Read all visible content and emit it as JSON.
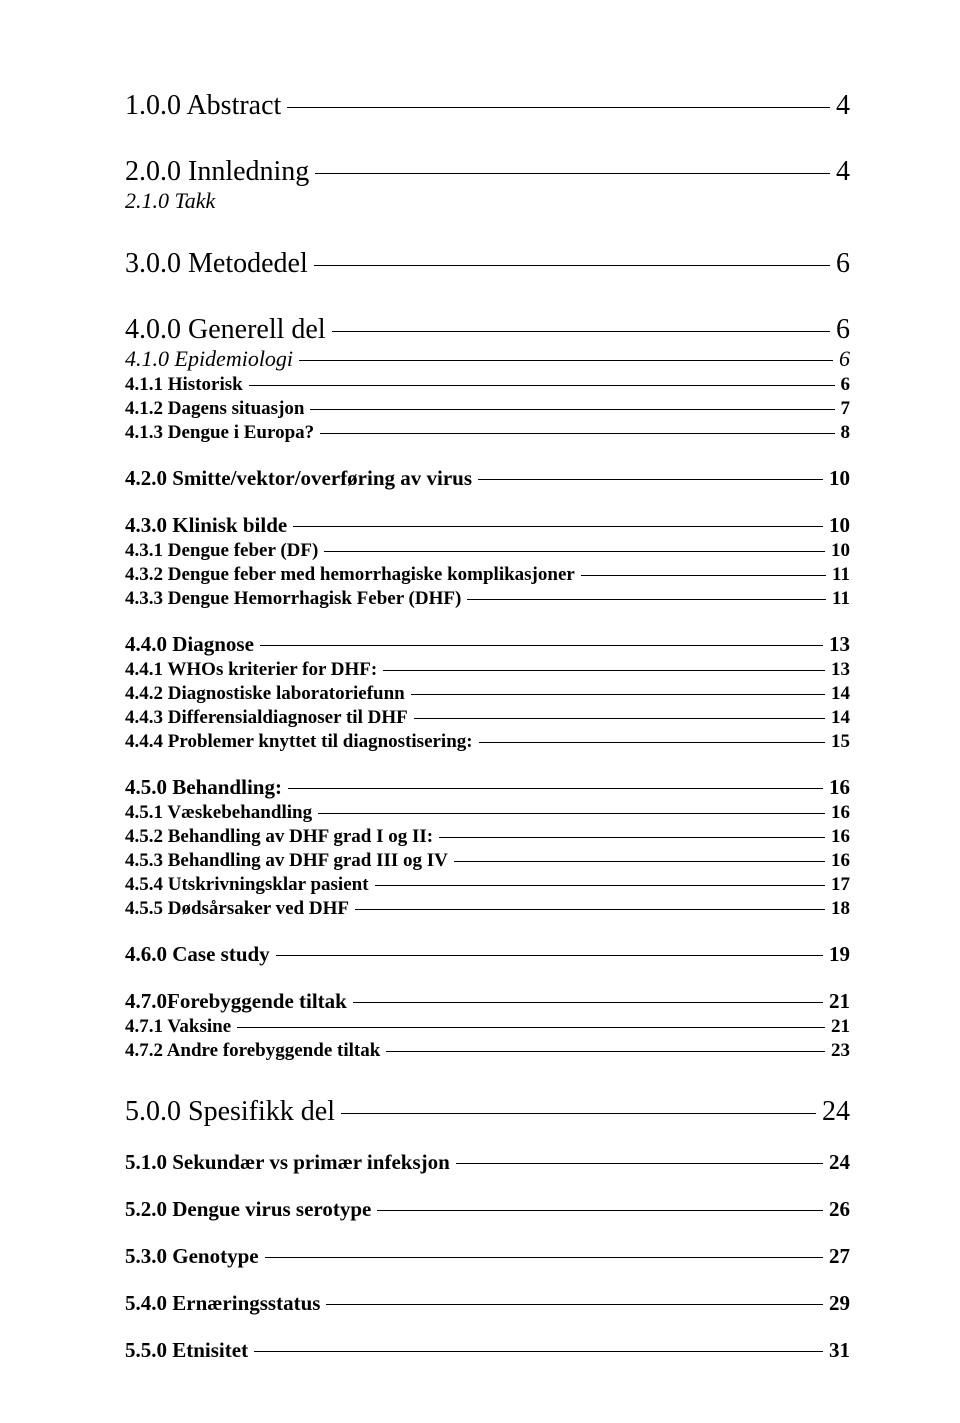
{
  "toc": [
    {
      "label": "1.0.0 Abstract",
      "page": "4",
      "style": "lvl1",
      "first": true
    },
    {
      "label": "2.0.0 Innledning",
      "page": "4",
      "style": "lvl1"
    },
    {
      "label": "2.1.0 Takk",
      "page": "",
      "style": "lvl2",
      "nogap": true,
      "noleader": true
    },
    {
      "label": "3.0.0 Metodedel",
      "page": "6",
      "style": "lvl1"
    },
    {
      "label": "4.0.0 Generell del",
      "page": "6",
      "style": "lvl1"
    },
    {
      "label": "4.1.0 Epidemiologi",
      "page": "6",
      "style": "lvl2",
      "nogap": true
    },
    {
      "label": "4.1.1 Historisk",
      "page": "6",
      "style": "lvl3"
    },
    {
      "label": "4.1.2 Dagens situasjon",
      "page": "7",
      "style": "lvl3"
    },
    {
      "label": "4.1.3 Dengue i Europa?",
      "page": "8",
      "style": "lvl3"
    },
    {
      "label": "4.2.0 Smitte/vektor/overføring av virus",
      "page": "10",
      "style": "lvl2b"
    },
    {
      "label": "4.3.0 Klinisk bilde",
      "page": "10",
      "style": "lvl2b"
    },
    {
      "label": "4.3.1 Dengue feber (DF)",
      "page": "10",
      "style": "lvl3"
    },
    {
      "label": "4.3.2 Dengue feber med hemorrhagiske komplikasjoner",
      "page": "11",
      "style": "lvl3"
    },
    {
      "label": "4.3.3 Dengue Hemorrhagisk Feber (DHF)",
      "page": "11",
      "style": "lvl3"
    },
    {
      "label": "4.4.0 Diagnose",
      "page": "13",
      "style": "lvl2b"
    },
    {
      "label": "4.4.1 WHOs kriterier for DHF:",
      "page": "13",
      "style": "lvl3"
    },
    {
      "label": "4.4.2 Diagnostiske laboratoriefunn",
      "page": "14",
      "style": "lvl3"
    },
    {
      "label": "4.4.3 Differensialdiagnoser til DHF",
      "page": "14",
      "style": "lvl3"
    },
    {
      "label": "4.4.4 Problemer knyttet til diagnostisering:",
      "page": "15",
      "style": "lvl3"
    },
    {
      "label": "4.5.0 Behandling:",
      "page": "16",
      "style": "lvl2b"
    },
    {
      "label": "4.5.1 Væskebehandling",
      "page": "16",
      "style": "lvl3"
    },
    {
      "label": "4.5.2 Behandling av DHF grad I og II:",
      "page": "16",
      "style": "lvl3"
    },
    {
      "label": "4.5.3 Behandling av DHF grad III og IV",
      "page": "16",
      "style": "lvl3"
    },
    {
      "label": "4.5.4 Utskrivningsklar pasient",
      "page": "17",
      "style": "lvl3"
    },
    {
      "label": "4.5.5 Dødsårsaker ved DHF",
      "page": "18",
      "style": "lvl3"
    },
    {
      "label": "4.6.0 Case study",
      "page": "19",
      "style": "lvl2b"
    },
    {
      "label": "4.7.0Forebyggende tiltak",
      "page": "21",
      "style": "lvl2b"
    },
    {
      "label": "4.7.1 Vaksine",
      "page": "21",
      "style": "lvl3"
    },
    {
      "label": "4.7.2 Andre forebyggende tiltak",
      "page": "23",
      "style": "lvl3"
    },
    {
      "label": "5.0.0 Spesifikk del",
      "page": "24",
      "style": "lvl1"
    },
    {
      "label": "5.1.0 Sekundær vs primær infeksjon",
      "page": "24",
      "style": "lvl2b"
    },
    {
      "label": "5.2.0 Dengue virus serotype",
      "page": "26",
      "style": "lvl2b"
    },
    {
      "label": "5.3.0 Genotype",
      "page": "27",
      "style": "lvl2b"
    },
    {
      "label": "5.4.0 Ernæringsstatus",
      "page": "29",
      "style": "lvl2b"
    },
    {
      "label": "5.5.0 Etnisitet",
      "page": "31",
      "style": "lvl2b"
    }
  ]
}
